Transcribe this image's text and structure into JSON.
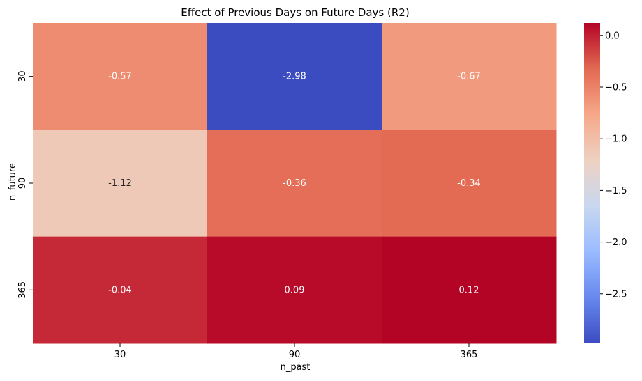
{
  "chart_data": {
    "type": "heatmap",
    "title": "Effect of Previous Days on Future Days (R2)",
    "xlabel": "n_past",
    "ylabel": "n_future",
    "x_categories": [
      "30",
      "90",
      "365"
    ],
    "y_categories": [
      "30",
      "90",
      "365"
    ],
    "values": [
      [
        -0.57,
        -2.98,
        -0.67
      ],
      [
        -1.12,
        -0.36,
        -0.34
      ],
      [
        -0.04,
        0.09,
        0.12
      ]
    ],
    "value_labels": [
      [
        "-0.57",
        "-2.98",
        "-0.67"
      ],
      [
        "-1.12",
        "-0.36",
        "-0.34"
      ],
      [
        "-0.04",
        "0.09",
        "0.12"
      ]
    ],
    "colormap": "coolwarm",
    "colorbar": {
      "range": [
        -2.98,
        0.12
      ],
      "ticks": [
        0.0,
        -0.5,
        -1.0,
        -1.5,
        -2.0,
        -2.5
      ],
      "tick_labels": [
        "0.0",
        "−0.5",
        "−1.0",
        "−1.5",
        "−2.0",
        "−2.5"
      ]
    },
    "colorscale_stops": [
      "#3b4cc0",
      "#6788ee",
      "#9abbff",
      "#c9d7f0",
      "#edd1c2",
      "#f7a889",
      "#e26952",
      "#b40426"
    ],
    "annotation_colors": {
      "-0.57": "#ffffff",
      "-2.98": "#ffffff",
      "-0.67": "#ffffff",
      "-1.12": "#262626",
      "-0.36": "#ffffff",
      "-0.34": "#ffffff",
      "-0.04": "#ffffff",
      "0.09": "#ffffff",
      "0.12": "#ffffff"
    },
    "grid": false,
    "legend": "colorbar-right"
  }
}
